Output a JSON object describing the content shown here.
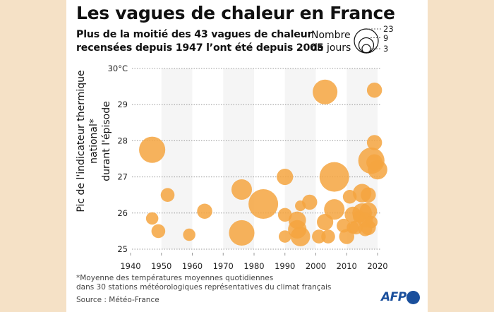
{
  "chart_data": {
    "type": "scatter",
    "title": "Les vagues de chaleur en France",
    "subtitle": [
      "Plus de la moitié des 43 vagues de chaleur",
      "recensées depuis 1947 l’ont été depuis 2005"
    ],
    "xlabel": "",
    "ylabel": [
      "Pic de l'indicateur thermique national*",
      "durant l'épisode"
    ],
    "xlim": [
      1940,
      2020
    ],
    "ylim": [
      25,
      30
    ],
    "xticks": [
      "1940",
      "1950",
      "1960",
      "1970",
      "1980",
      "1990",
      "2000",
      "2010",
      "2020"
    ],
    "yticks": [
      "25",
      "26",
      "27",
      "28",
      "29",
      "30°C"
    ],
    "grid": "horizontal dotted",
    "shaded_decades": [
      [
        1950,
        1960
      ],
      [
        1970,
        1980
      ],
      [
        1990,
        2000
      ],
      [
        2010,
        2020
      ]
    ],
    "bubble_size_legend": {
      "title": [
        "Nombre",
        "de jours"
      ],
      "values": [
        "23",
        "9",
        "3"
      ]
    },
    "color": "#f4a53f",
    "points": [
      {
        "year": 1947,
        "temp": 27.75,
        "days": 18
      },
      {
        "year": 1947,
        "temp": 25.85,
        "days": 4
      },
      {
        "year": 1949,
        "temp": 25.5,
        "days": 5
      },
      {
        "year": 1952,
        "temp": 26.5,
        "days": 5
      },
      {
        "year": 1959,
        "temp": 25.4,
        "days": 4
      },
      {
        "year": 1964,
        "temp": 26.05,
        "days": 6
      },
      {
        "year": 1976,
        "temp": 26.65,
        "days": 11
      },
      {
        "year": 1976,
        "temp": 25.45,
        "days": 17
      },
      {
        "year": 1983,
        "temp": 26.25,
        "days": 23
      },
      {
        "year": 1990,
        "temp": 27.0,
        "days": 7
      },
      {
        "year": 1990,
        "temp": 25.95,
        "days": 5
      },
      {
        "year": 1990,
        "temp": 25.35,
        "days": 4
      },
      {
        "year": 1994,
        "temp": 25.8,
        "days": 8
      },
      {
        "year": 1994,
        "temp": 25.55,
        "days": 9
      },
      {
        "year": 1995,
        "temp": 26.2,
        "days": 3
      },
      {
        "year": 1995,
        "temp": 25.35,
        "days": 10
      },
      {
        "year": 1998,
        "temp": 26.3,
        "days": 6
      },
      {
        "year": 2001,
        "temp": 25.35,
        "days": 5
      },
      {
        "year": 2003,
        "temp": 29.35,
        "days": 16
      },
      {
        "year": 2003,
        "temp": 25.75,
        "days": 7
      },
      {
        "year": 2004,
        "temp": 25.35,
        "days": 5
      },
      {
        "year": 2006,
        "temp": 27.0,
        "days": 23
      },
      {
        "year": 2006,
        "temp": 26.1,
        "days": 11
      },
      {
        "year": 2009,
        "temp": 25.65,
        "days": 5
      },
      {
        "year": 2010,
        "temp": 25.35,
        "days": 6
      },
      {
        "year": 2011,
        "temp": 26.45,
        "days": 5
      },
      {
        "year": 2012,
        "temp": 25.95,
        "days": 7
      },
      {
        "year": 2012,
        "temp": 25.6,
        "days": 4
      },
      {
        "year": 2013,
        "temp": 25.6,
        "days": 5
      },
      {
        "year": 2015,
        "temp": 26.55,
        "days": 9
      },
      {
        "year": 2015,
        "temp": 26.0,
        "days": 10
      },
      {
        "year": 2016,
        "temp": 25.8,
        "days": 6
      },
      {
        "year": 2017,
        "temp": 26.5,
        "days": 6
      },
      {
        "year": 2017,
        "temp": 25.6,
        "days": 6
      },
      {
        "year": 2018,
        "temp": 27.45,
        "days": 18
      },
      {
        "year": 2019,
        "temp": 29.4,
        "days": 6
      },
      {
        "year": 2019,
        "temp": 27.95,
        "days": 6
      },
      {
        "year": 2020,
        "temp": 27.2,
        "days": 10
      },
      {
        "year": 2017,
        "temp": 26.05,
        "days": 8
      },
      {
        "year": 2014,
        "temp": 25.9,
        "days": 4
      },
      {
        "year": 2016,
        "temp": 25.55,
        "days": 5
      },
      {
        "year": 2018,
        "temp": 25.75,
        "days": 4
      },
      {
        "year": 2019,
        "temp": 27.4,
        "days": 7
      }
    ]
  },
  "footnote": [
    "*Moyenne des températures moyennes quotidiennes",
    "dans 30 stations météorologiques représentatives du climat français"
  ],
  "source": "Source : Météo-France",
  "logo": "AFP"
}
